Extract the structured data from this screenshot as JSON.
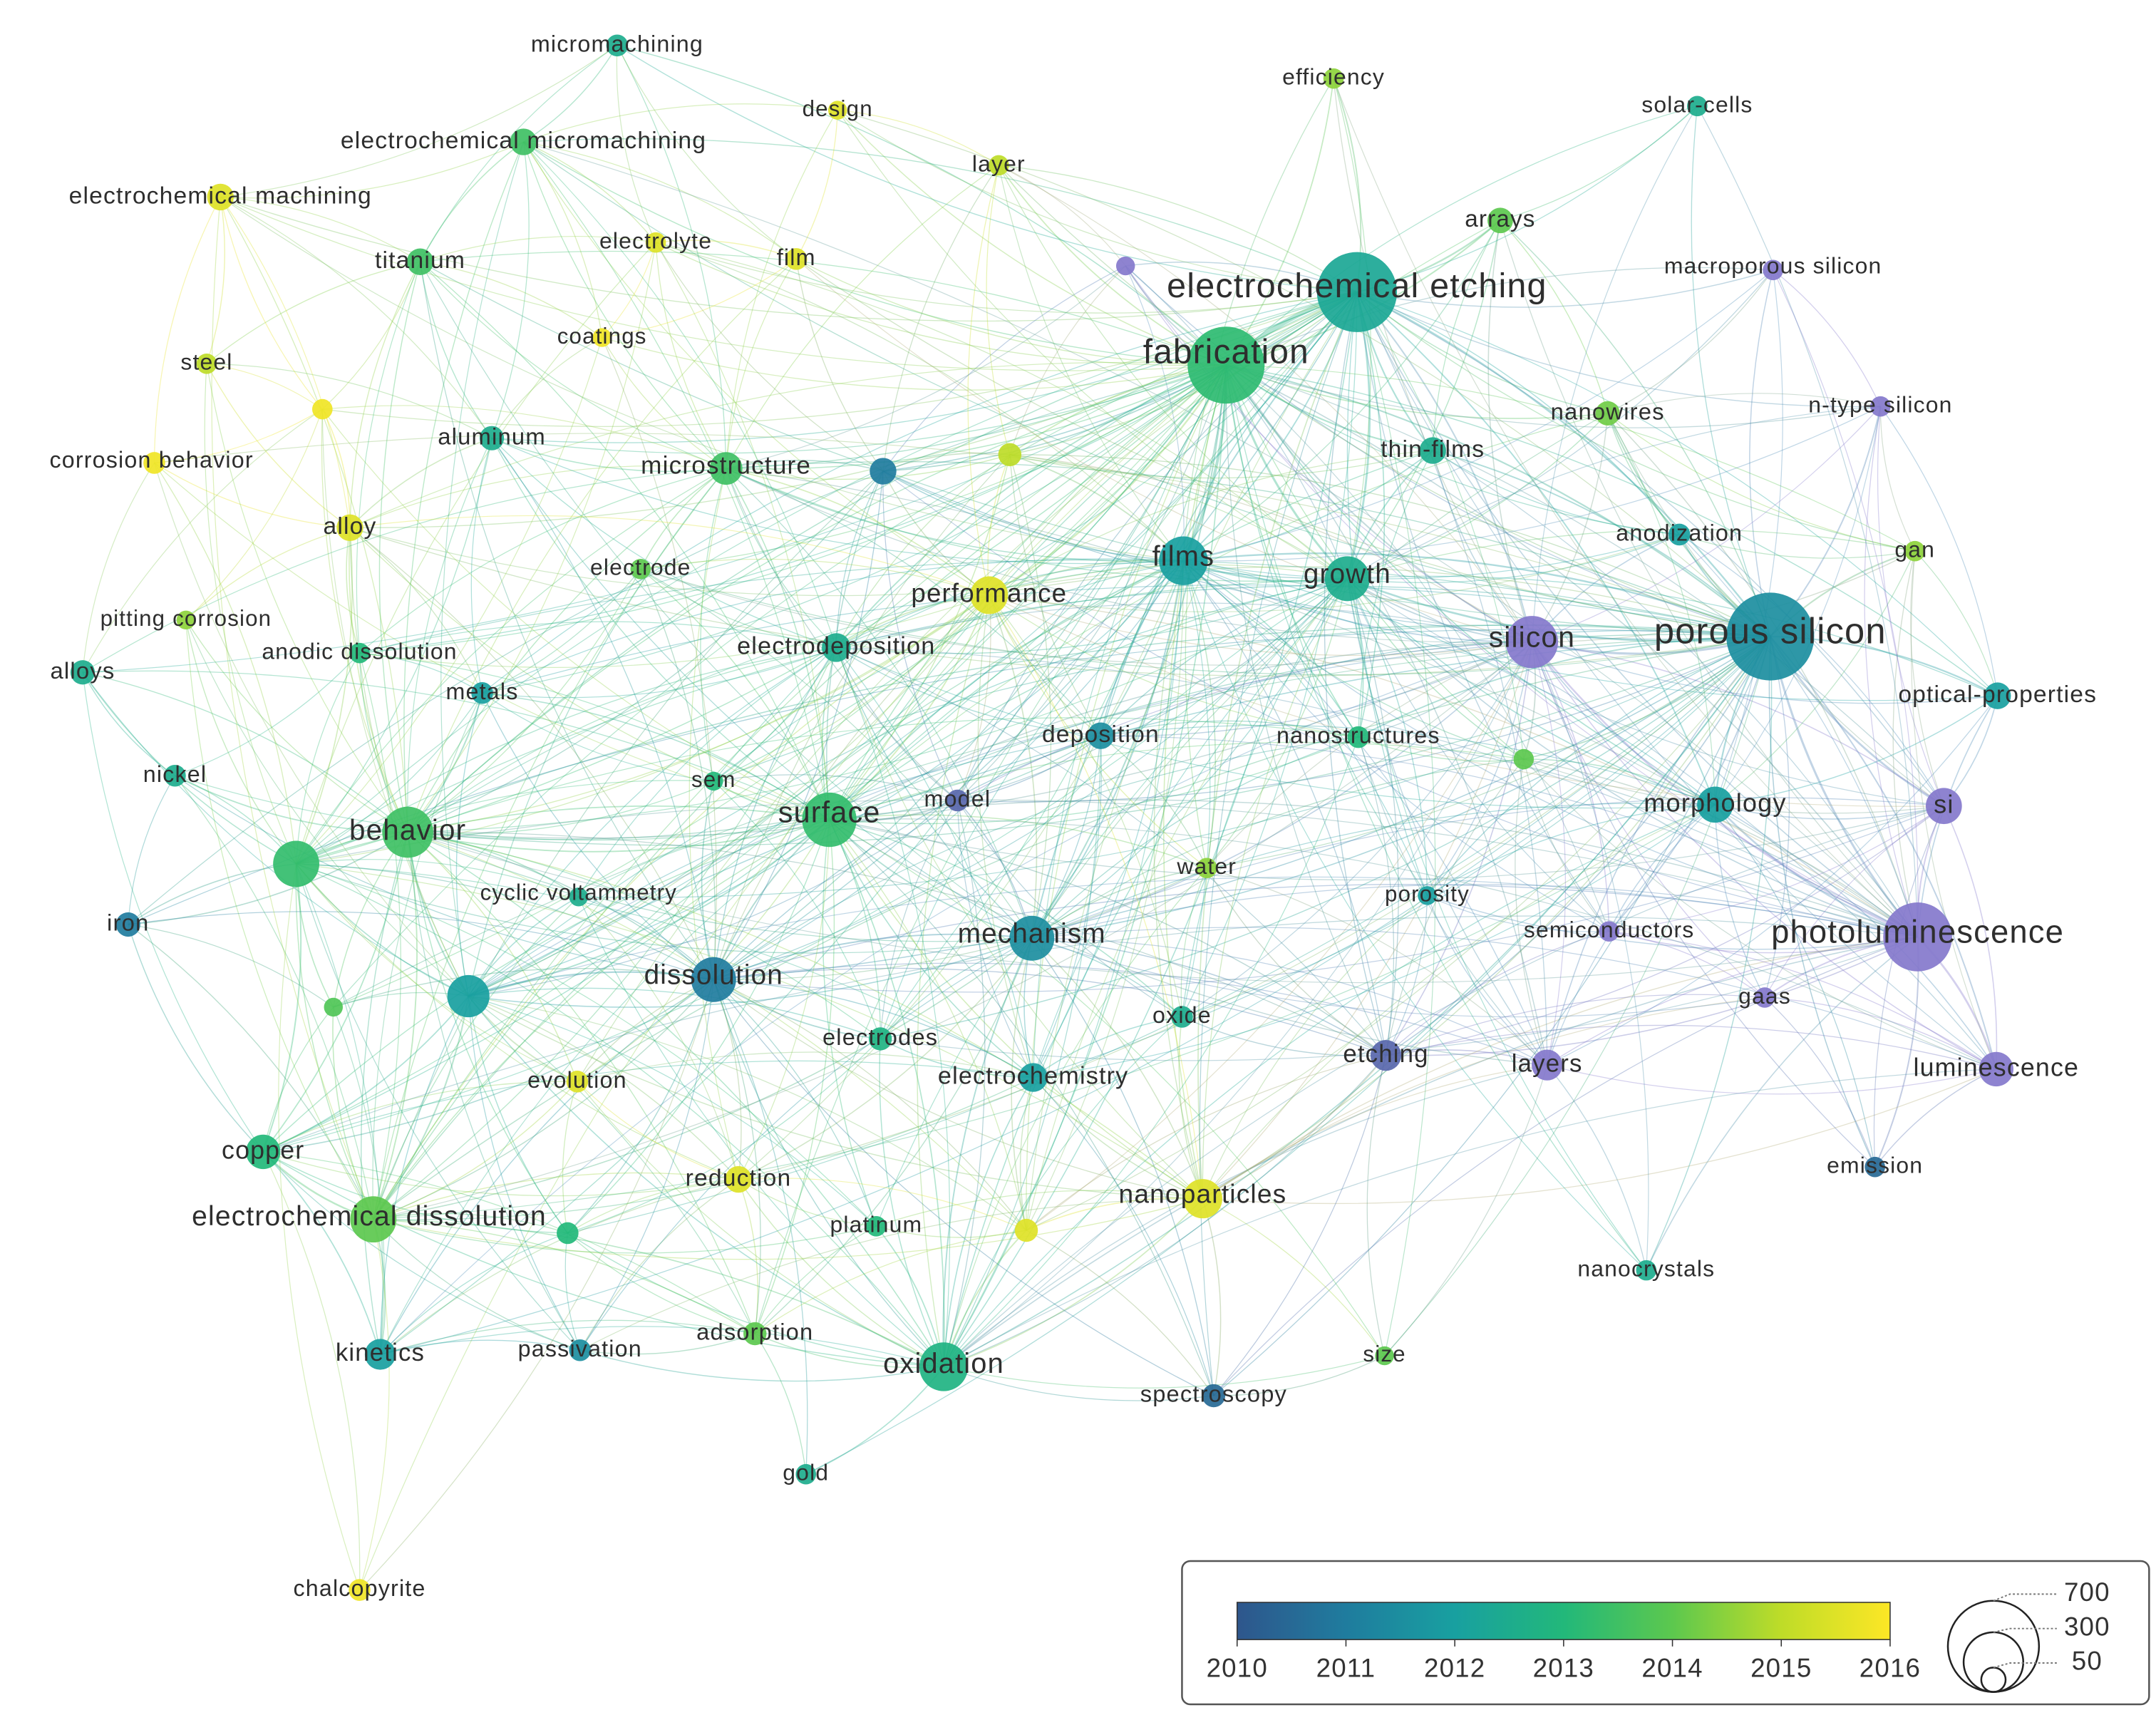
{
  "nodes": [
    {
      "label": "micromachining",
      "year": 2012.5,
      "occurrences": 40
    },
    {
      "label": "design",
      "year": 2015.5,
      "occurrences": 30
    },
    {
      "label": "efficiency",
      "year": 2014.5,
      "occurrences": 35
    },
    {
      "label": "solar-cells",
      "year": 2012.5,
      "occurrences": 35
    },
    {
      "label": "electrochemical micromachining",
      "year": 2013.5,
      "occurrences": 60
    },
    {
      "label": "electrochemical machining",
      "year": 2015.5,
      "occurrences": 60
    },
    {
      "label": "layer",
      "year": 2015,
      "occurrences": 35
    },
    {
      "label": "arrays",
      "year": 2014,
      "occurrences": 55
    },
    {
      "label": "titanium",
      "year": 2013.5,
      "occurrences": 60
    },
    {
      "label": "electrolyte",
      "year": 2015.5,
      "occurrences": 35
    },
    {
      "label": "film",
      "year": 2015.5,
      "occurrences": 40
    },
    {
      "label": "macroporous silicon",
      "year": 2009,
      "occurrences": 35
    },
    {
      "label": "electrochemical etching",
      "year": 2012.3,
      "occurrences": 540
    },
    {
      "label": "fabrication",
      "year": 2013.2,
      "occurrences": 500
    },
    {
      "label": "coatings",
      "year": 2015.8,
      "occurrences": 30
    },
    {
      "label": "steel",
      "year": 2015,
      "occurrences": 35
    },
    {
      "label": "nanowires",
      "year": 2014.2,
      "occurrences": 50
    },
    {
      "label": "n-type silicon",
      "year": 2009,
      "occurrences": 35
    },
    {
      "label": "corrosion behavior",
      "year": 2015.8,
      "occurrences": 40
    },
    {
      "label": "aluminum",
      "year": 2012.5,
      "occurrences": 50
    },
    {
      "label": "thin-films",
      "year": 2012.5,
      "occurrences": 60
    },
    {
      "label": "microstructure",
      "year": 2013.5,
      "occurrences": 90
    },
    {
      "label": "alloy",
      "year": 2015.5,
      "occurrences": 60
    },
    {
      "label": "electrode",
      "year": 2014,
      "occurrences": 35
    },
    {
      "label": "anodization",
      "year": 2012,
      "occurrences": 40
    },
    {
      "label": "gan",
      "year": 2014.5,
      "occurrences": 35
    },
    {
      "label": "films",
      "year": 2012,
      "occurrences": 200
    },
    {
      "label": "growth",
      "year": 2012.5,
      "occurrences": 170
    },
    {
      "label": "performance",
      "year": 2015.5,
      "occurrences": 120
    },
    {
      "label": "pitting corrosion",
      "year": 2014.5,
      "occurrences": 30
    },
    {
      "label": "silicon",
      "year": 2009,
      "occurrences": 230
    },
    {
      "label": "porous silicon",
      "year": 2011.5,
      "occurrences": 650
    },
    {
      "label": "anodic dissolution",
      "year": 2013,
      "occurrences": 35
    },
    {
      "label": "electrodeposition",
      "year": 2012.5,
      "occurrences": 70
    },
    {
      "label": "alloys",
      "year": 2012.5,
      "occurrences": 50
    },
    {
      "label": "metals",
      "year": 2012,
      "occurrences": 40
    },
    {
      "label": "optical-properties",
      "year": 2012,
      "occurrences": 60
    },
    {
      "label": "deposition",
      "year": 2011.5,
      "occurrences": 60
    },
    {
      "label": "nanostructures",
      "year": 2013,
      "occurrences": 40
    },
    {
      "label": "nickel",
      "year": 2012.5,
      "occurrences": 40
    },
    {
      "label": "sem",
      "year": 2013,
      "occurrences": 30
    },
    {
      "label": "model",
      "year": 2009.5,
      "occurrences": 40
    },
    {
      "label": "surface",
      "year": 2013.3,
      "occurrences": 250
    },
    {
      "label": "morphology",
      "year": 2012,
      "occurrences": 110
    },
    {
      "label": "si",
      "year": 2009,
      "occurrences": 110
    },
    {
      "label": "behavior",
      "year": 2013.5,
      "occurrences": 220
    },
    {
      "label": "water",
      "year": 2014.5,
      "occurrences": 35
    },
    {
      "label": "cyclic voltammetry",
      "year": 2012.5,
      "occurrences": 30
    },
    {
      "label": "porosity",
      "year": 2012,
      "occurrences": 30
    },
    {
      "label": "iron",
      "year": 2011,
      "occurrences": 50
    },
    {
      "label": "semiconductors",
      "year": 2009,
      "occurrences": 35
    },
    {
      "label": "photoluminescence",
      "year": 2009,
      "occurrences": 400
    },
    {
      "label": "mechanism",
      "year": 2011.5,
      "occurrences": 170
    },
    {
      "label": "dissolution",
      "year": 2011,
      "occurrences": 170
    },
    {
      "label": "gaas",
      "year": 2009,
      "occurrences": 35
    },
    {
      "label": "oxide",
      "year": 2012.5,
      "occurrences": 40
    },
    {
      "label": "electrodes",
      "year": 2012.8,
      "occurrences": 45
    },
    {
      "label": "etching",
      "year": 2009.5,
      "occurrences": 80
    },
    {
      "label": "layers",
      "year": 2009,
      "occurrences": 80
    },
    {
      "label": "luminescence",
      "year": 2009,
      "occurrences": 100
    },
    {
      "label": "electrochemistry",
      "year": 2012,
      "occurrences": 70
    },
    {
      "label": "evolution",
      "year": 2015.5,
      "occurrences": 40
    },
    {
      "label": "copper",
      "year": 2013,
      "occurrences": 100
    },
    {
      "label": "emission",
      "year": 2010.5,
      "occurrences": 35
    },
    {
      "label": "reduction",
      "year": 2015.5,
      "occurrences": 60
    },
    {
      "label": "nanoparticles",
      "year": 2015.5,
      "occurrences": 130
    },
    {
      "label": "electrochemical dissolution",
      "year": 2014,
      "occurrences": 180
    },
    {
      "label": "platinum",
      "year": 2013,
      "occurrences": 35
    },
    {
      "label": "nanocrystals",
      "year": 2012.5,
      "occurrences": 35
    },
    {
      "label": "size",
      "year": 2014,
      "occurrences": 30
    },
    {
      "label": "kinetics",
      "year": 2012,
      "occurrences": 80
    },
    {
      "label": "passivation",
      "year": 2011.5,
      "occurrences": 40
    },
    {
      "label": "adsorption",
      "year": 2014,
      "occurrences": 45
    },
    {
      "label": "oxidation",
      "year": 2012.8,
      "occurrences": 200
    },
    {
      "label": "spectroscopy",
      "year": 2010.5,
      "occurrences": 45
    },
    {
      "label": "gold",
      "year": 2012.5,
      "occurrences": 35
    },
    {
      "label": "chalcopyrite",
      "year": 2015.8,
      "occurrences": 40
    }
  ],
  "unlabeled_nodes": [
    {
      "year": 2009,
      "occurrences": 30
    },
    {
      "year": 2011,
      "occurrences": 60
    },
    {
      "year": 2015,
      "occurrences": 45
    },
    {
      "year": 2015.8,
      "occurrences": 35
    },
    {
      "year": 2014,
      "occurrences": 35
    },
    {
      "year": 2013.3,
      "occurrences": 180
    },
    {
      "year": 2012,
      "occurrences": 150
    },
    {
      "year": 2013.8,
      "occurrences": 30
    },
    {
      "year": 2013,
      "occurrences": 40
    },
    {
      "year": 2015.5,
      "occurrences": 45
    }
  ],
  "legend": {
    "year_ticks": [
      2010,
      2011,
      2012,
      2013,
      2014,
      2015,
      2016
    ],
    "size_ticks": [
      700,
      300,
      50
    ]
  }
}
